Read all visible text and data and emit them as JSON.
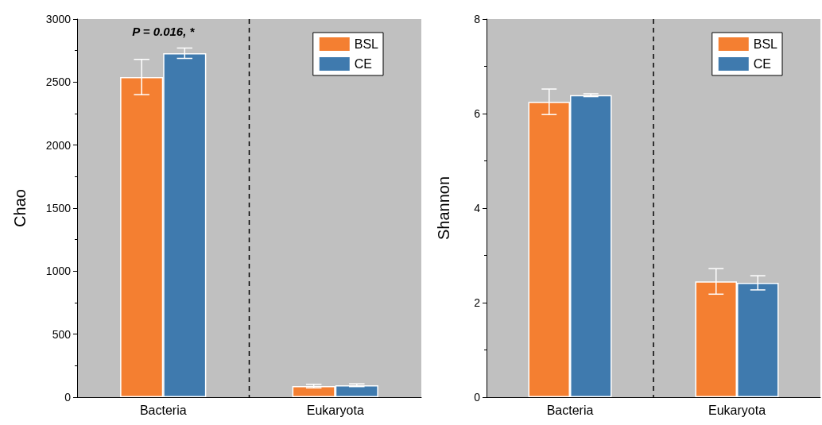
{
  "chart_data": [
    {
      "type": "bar",
      "ylabel": "Chao",
      "categories": [
        "Bacteria",
        "Eukaryota"
      ],
      "series": [
        {
          "name": "BSL",
          "color": "#f47f31",
          "values": [
            2540,
            88
          ],
          "errors": [
            140,
            14
          ]
        },
        {
          "name": "CE",
          "color": "#3f7aae",
          "values": [
            2729,
            95
          ],
          "errors": [
            41,
            11
          ]
        }
      ],
      "ylim": [
        0,
        3000
      ],
      "yticks": [
        0,
        500,
        1000,
        1500,
        2000,
        2500,
        3000
      ],
      "grid": false,
      "legend": "top right",
      "annotations": [
        "P = 0.016, *"
      ]
    },
    {
      "type": "bar",
      "ylabel": "Shannon",
      "categories": [
        "Bacteria",
        "Eukaryota"
      ],
      "series": [
        {
          "name": "BSL",
          "color": "#f47f31",
          "values": [
            6.25,
            2.45
          ],
          "errors": [
            0.27,
            0.27
          ]
        },
        {
          "name": "CE",
          "color": "#3f7aae",
          "values": [
            6.39,
            2.42
          ],
          "errors": [
            0.03,
            0.15
          ]
        }
      ],
      "ylim": [
        0,
        8
      ],
      "yticks": [
        0,
        2,
        4,
        6,
        8
      ],
      "grid": false,
      "legend": "top right"
    }
  ]
}
